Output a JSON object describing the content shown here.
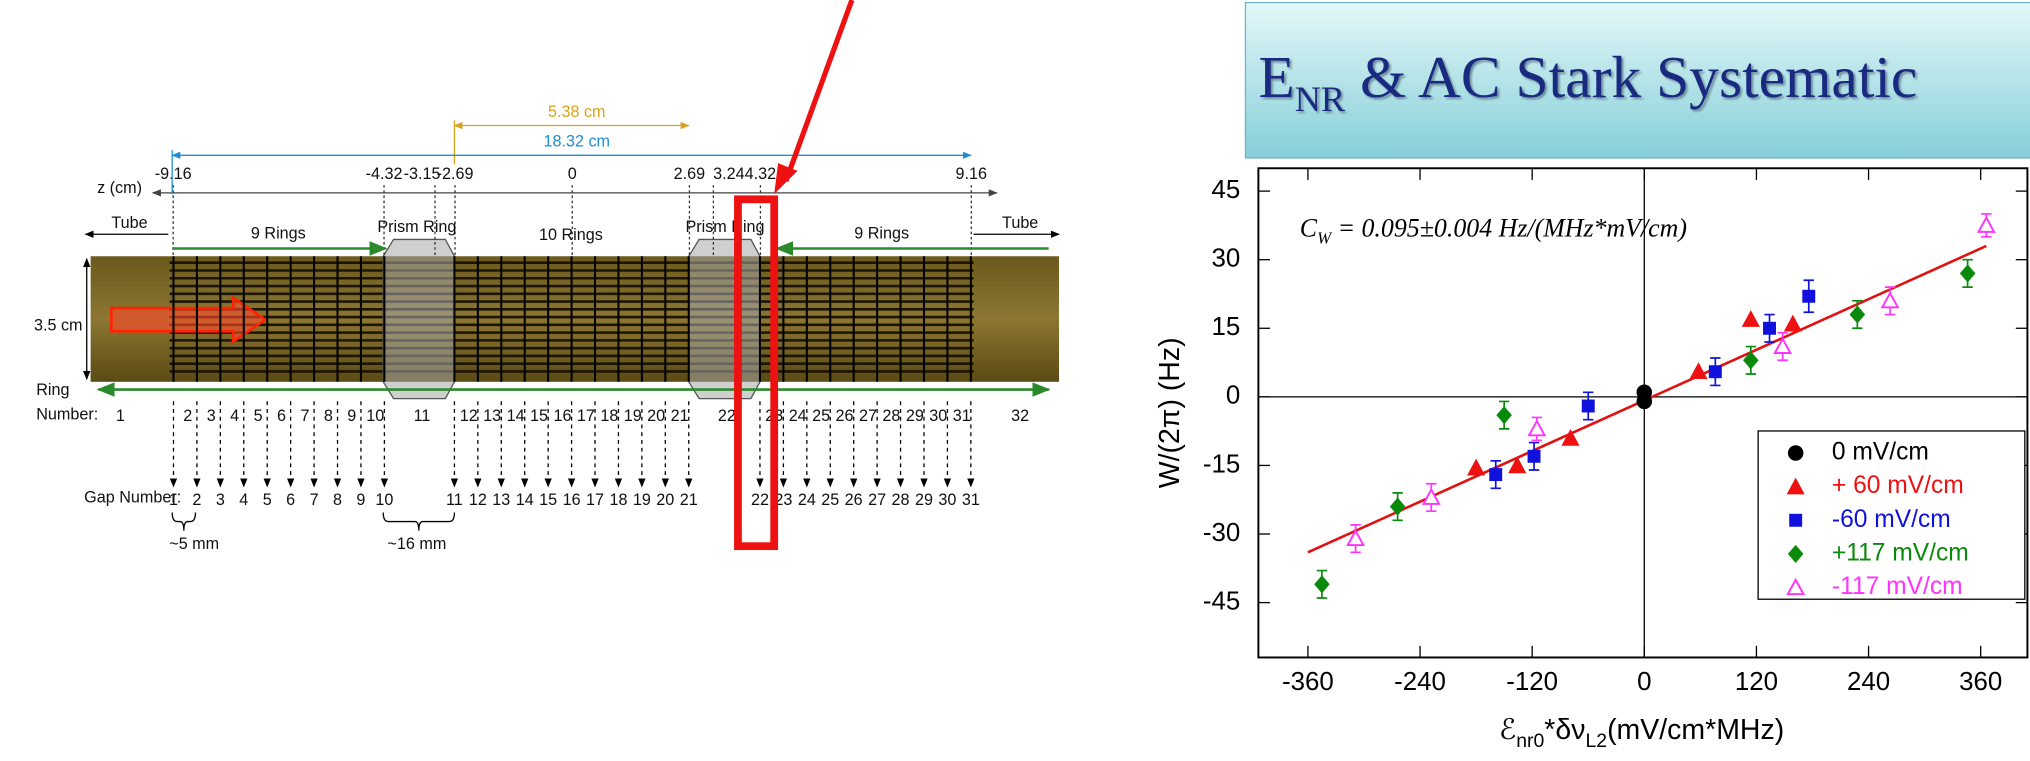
{
  "chart_data": {
    "type": "scatter",
    "title_parts": [
      {
        "text": "E"
      },
      {
        "text": "NR",
        "sub": true
      },
      {
        "text": " & AC Stark Systematic"
      }
    ],
    "y_label": "W/(2π) (Hz)",
    "x_label_parts": [
      {
        "text": "ℰ"
      },
      {
        "text": "nr0",
        "sub": true
      },
      {
        "text": "*δν"
      },
      {
        "text": "L2",
        "sub": true
      },
      {
        "text": "(mV/cm*MHz)"
      }
    ],
    "annotation_parts": [
      {
        "text": "C"
      },
      {
        "text": "W",
        "sub": true
      },
      {
        "text": " = 0.095±0.004 Hz/(MHz*mV/cm)"
      }
    ],
    "xlim": [
      -413,
      410
    ],
    "ylim": [
      -57,
      50
    ],
    "xticks": [
      -360,
      -240,
      -120,
      0,
      120,
      240,
      360
    ],
    "yticks": [
      -45,
      -30,
      -15,
      0,
      15,
      30,
      45
    ],
    "zero_lines": true,
    "legend": "lower right",
    "fit": {
      "color": "#e31010",
      "x": [
        -360,
        366
      ],
      "values": [
        -34,
        33
      ]
    },
    "series": [
      {
        "name": "0 mV/cm",
        "color": "#000000",
        "marker": "circle",
        "x": [
          0,
          0
        ],
        "values": [
          1,
          -1
        ]
      },
      {
        "name": "+ 60 mV/cm",
        "color": "#ee1111",
        "marker": "triangle",
        "x": [
          -180,
          -136,
          -79,
          58,
          114,
          159
        ],
        "values": [
          -15.5,
          -15,
          -9,
          5.6,
          17,
          16
        ]
      },
      {
        "name": "-60 mV/cm",
        "color": "#1111dd",
        "marker": "square",
        "x": [
          -159,
          -118,
          -60,
          76,
          134,
          176
        ],
        "values": [
          -17,
          -13,
          -2,
          5.5,
          15,
          22
        ],
        "errors": [
          3,
          3,
          3,
          3,
          3,
          3.5
        ]
      },
      {
        "name": "+117 mV/cm",
        "color": "#0a8a0a",
        "marker": "diamond",
        "x": [
          -345,
          -264,
          -150,
          114,
          228,
          346
        ],
        "values": [
          -41,
          -24,
          -4,
          8,
          18,
          27
        ],
        "errors": [
          3,
          3,
          3,
          3,
          3,
          3
        ]
      },
      {
        "name": "-117 mV/cm",
        "color": "#ff33ff",
        "marker": "open-triangle",
        "x": [
          -309,
          -228,
          -115,
          148,
          263,
          366
        ],
        "values": [
          -31,
          -22,
          -7,
          11,
          21,
          37.5
        ],
        "errors": [
          3,
          3,
          2.5,
          3,
          3,
          2.5
        ]
      }
    ]
  },
  "diagram": {
    "dimensions": [
      {
        "label": "5.38 cm",
        "color": "#d9a21b"
      },
      {
        "label": "18.32 cm",
        "color": "#1e8fd6"
      }
    ],
    "z_label": "z (cm)",
    "z_ticks": [
      -9.16,
      -4.32,
      -3.15,
      -2.69,
      0,
      2.69,
      3.24,
      4.32,
      9.16
    ],
    "sections": [
      "Tube",
      "9 Rings",
      "Prism Ring",
      "10 Rings",
      "Prism Ring",
      "9 Rings",
      "Tube"
    ],
    "diameter": "3.5 cm",
    "ring_number_label": [
      "Ring",
      "Number:"
    ],
    "ring_numbers": [
      1,
      2,
      3,
      4,
      5,
      6,
      7,
      8,
      9,
      10,
      11,
      12,
      13,
      14,
      15,
      16,
      17,
      18,
      19,
      20,
      21,
      22,
      23,
      24,
      25,
      26,
      27,
      28,
      29,
      30,
      31,
      32
    ],
    "gap_number_label": "Gap Number:",
    "gap_numbers": [
      1,
      2,
      3,
      4,
      5,
      6,
      7,
      8,
      9,
      10,
      11,
      12,
      13,
      14,
      15,
      16,
      17,
      18,
      19,
      20,
      21,
      22,
      23,
      24,
      25,
      26,
      27,
      28,
      29,
      30,
      31
    ],
    "spacings": [
      "~5 mm",
      "~16 mm"
    ]
  }
}
